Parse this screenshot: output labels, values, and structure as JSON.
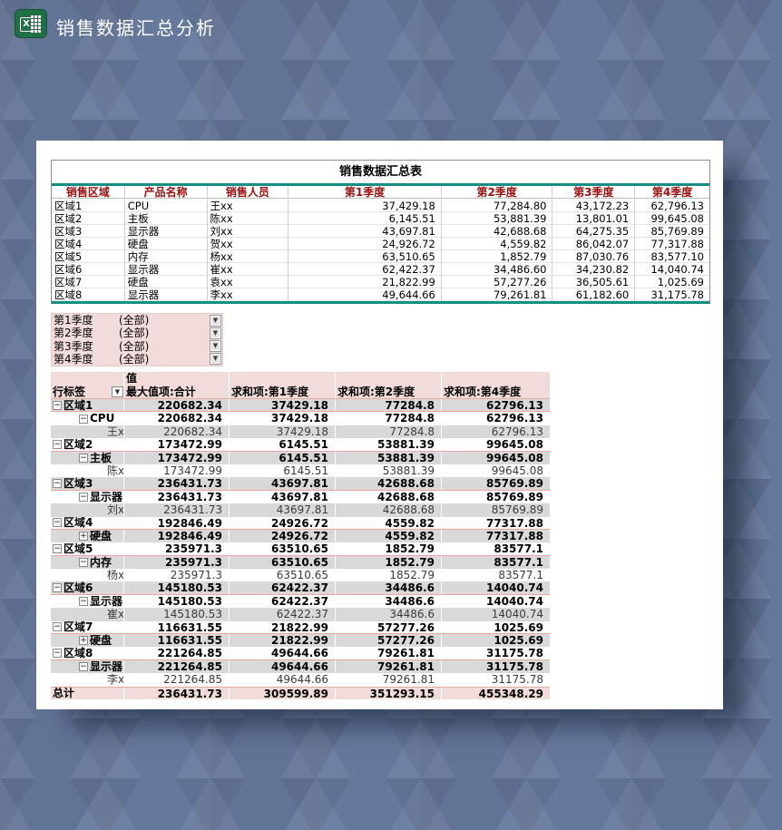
{
  "header": {
    "title": "销售数据汇总分析"
  },
  "colors": {
    "background": "#66799c",
    "excel_green": "#1f7145",
    "teal_border": "#148f85",
    "header_text_red": "#9c0f0f",
    "pink_accent": "#f2dcdb",
    "gray_row": "#d9d9d9",
    "salmon_border": "#eaa89f"
  },
  "summary_table": {
    "title": "销售数据汇总表",
    "columns": [
      "销售区域",
      "产品名称",
      "销售人员",
      "第1季度",
      "第2季度",
      "第3季度",
      "第4季度"
    ],
    "rows": [
      [
        "区域1",
        "CPU",
        "王xx",
        "37,429.18",
        "77,284.80",
        "43,172.23",
        "62,796.13"
      ],
      [
        "区域2",
        "主板",
        "陈xx",
        "6,145.51",
        "53,881.39",
        "13,801.01",
        "99,645.08"
      ],
      [
        "区域3",
        "显示器",
        "刘xx",
        "43,697.81",
        "42,688.68",
        "64,275.35",
        "85,769.89"
      ],
      [
        "区域4",
        "硬盘",
        "贺xx",
        "24,926.72",
        "4,559.82",
        "86,042.07",
        "77,317.88"
      ],
      [
        "区域5",
        "内存",
        "杨xx",
        "63,510.65",
        "1,852.79",
        "87,030.76",
        "83,577.10"
      ],
      [
        "区域6",
        "显示器",
        "崔xx",
        "62,422.37",
        "34,486.60",
        "34,230.82",
        "14,040.74"
      ],
      [
        "区域7",
        "硬盘",
        "袁xx",
        "21,822.99",
        "57,277.26",
        "36,505.61",
        "1,025.69"
      ],
      [
        "区域8",
        "显示器",
        "李xx",
        "49,644.66",
        "79,261.81",
        "61,182.60",
        "31,175.78"
      ]
    ]
  },
  "filters": [
    {
      "label": "第1季度",
      "value": "(全部)"
    },
    {
      "label": "第2季度",
      "value": "(全部)"
    },
    {
      "label": "第3季度",
      "value": "(全部)"
    },
    {
      "label": "第4季度",
      "value": "(全部)"
    }
  ],
  "pivot": {
    "values_label": "值",
    "row_label_header": "行标签",
    "value_headers": [
      "最大值项:合计",
      "求和项:第1季度",
      "求和项:第2季度",
      "求和项:第4季度"
    ],
    "rows": [
      {
        "label": "区域1",
        "level": 1,
        "icon": "minus",
        "values": [
          "220682.34",
          "37429.18",
          "77284.8",
          "62796.13"
        ]
      },
      {
        "label": "CPU",
        "level": 2,
        "icon": "minus",
        "values": [
          "220682.34",
          "37429.18",
          "77284.8",
          "62796.13"
        ]
      },
      {
        "label": "王xx",
        "level": 3,
        "icon": null,
        "values": [
          "220682.34",
          "37429.18",
          "77284.8",
          "62796.13"
        ]
      },
      {
        "label": "区域2",
        "level": 1,
        "icon": "minus",
        "values": [
          "173472.99",
          "6145.51",
          "53881.39",
          "99645.08"
        ]
      },
      {
        "label": "主板",
        "level": 2,
        "icon": "minus",
        "values": [
          "173472.99",
          "6145.51",
          "53881.39",
          "99645.08"
        ]
      },
      {
        "label": "陈xx",
        "level": 3,
        "icon": null,
        "values": [
          "173472.99",
          "6145.51",
          "53881.39",
          "99645.08"
        ]
      },
      {
        "label": "区域3",
        "level": 1,
        "icon": "minus",
        "values": [
          "236431.73",
          "43697.81",
          "42688.68",
          "85769.89"
        ]
      },
      {
        "label": "显示器",
        "level": 2,
        "icon": "minus",
        "values": [
          "236431.73",
          "43697.81",
          "42688.68",
          "85769.89"
        ]
      },
      {
        "label": "刘xx",
        "level": 3,
        "icon": null,
        "values": [
          "236431.73",
          "43697.81",
          "42688.68",
          "85769.89"
        ]
      },
      {
        "label": "区域4",
        "level": 1,
        "icon": "minus",
        "values": [
          "192846.49",
          "24926.72",
          "4559.82",
          "77317.88"
        ]
      },
      {
        "label": "硬盘",
        "level": 2,
        "icon": "plus",
        "values": [
          "192846.49",
          "24926.72",
          "4559.82",
          "77317.88"
        ]
      },
      {
        "label": "区域5",
        "level": 1,
        "icon": "minus",
        "values": [
          "235971.3",
          "63510.65",
          "1852.79",
          "83577.1"
        ]
      },
      {
        "label": "内存",
        "level": 2,
        "icon": "minus",
        "values": [
          "235971.3",
          "63510.65",
          "1852.79",
          "83577.1"
        ]
      },
      {
        "label": "杨xx",
        "level": 3,
        "icon": null,
        "values": [
          "235971.3",
          "63510.65",
          "1852.79",
          "83577.1"
        ]
      },
      {
        "label": "区域6",
        "level": 1,
        "icon": "minus",
        "values": [
          "145180.53",
          "62422.37",
          "34486.6",
          "14040.74"
        ]
      },
      {
        "label": "显示器",
        "level": 2,
        "icon": "minus",
        "values": [
          "145180.53",
          "62422.37",
          "34486.6",
          "14040.74"
        ]
      },
      {
        "label": "崔xx",
        "level": 3,
        "icon": null,
        "values": [
          "145180.53",
          "62422.37",
          "34486.6",
          "14040.74"
        ]
      },
      {
        "label": "区域7",
        "level": 1,
        "icon": "minus",
        "values": [
          "116631.55",
          "21822.99",
          "57277.26",
          "1025.69"
        ]
      },
      {
        "label": "硬盘",
        "level": 2,
        "icon": "plus",
        "values": [
          "116631.55",
          "21822.99",
          "57277.26",
          "1025.69"
        ]
      },
      {
        "label": "区域8",
        "level": 1,
        "icon": "minus",
        "values": [
          "221264.85",
          "49644.66",
          "79261.81",
          "31175.78"
        ]
      },
      {
        "label": "显示器",
        "level": 2,
        "icon": "minus",
        "values": [
          "221264.85",
          "49644.66",
          "79261.81",
          "31175.78"
        ]
      },
      {
        "label": "李xx",
        "level": 3,
        "icon": null,
        "values": [
          "221264.85",
          "49644.66",
          "79261.81",
          "31175.78"
        ]
      }
    ],
    "grand_total": {
      "label": "总计",
      "values": [
        "236431.73",
        "309599.89",
        "351293.15",
        "455348.29"
      ]
    }
  }
}
